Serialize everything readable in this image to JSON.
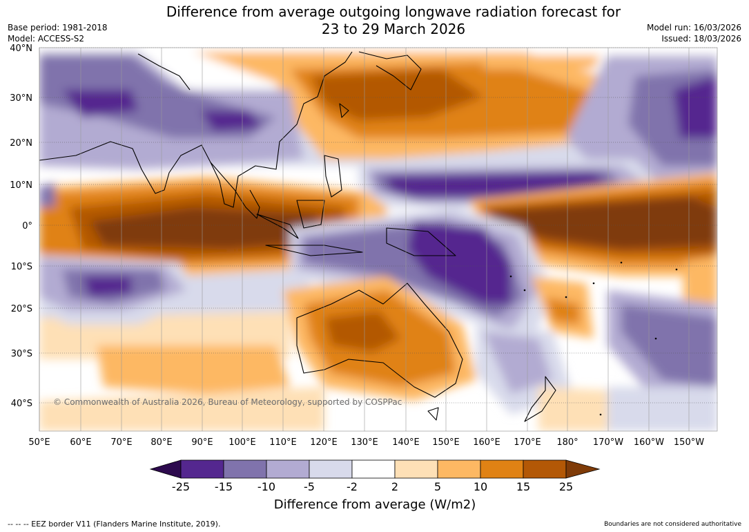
{
  "title_line1": "Difference from average outgoing longwave radiation forecast for",
  "title_line2": "23 to 29 March 2026",
  "base_period": "Base period: 1981-2018",
  "model": "Model: ACCESS-S2",
  "model_run": "Model run: 16/03/2026",
  "issued": "Issued: 18/03/2026",
  "copyright": "© Commonwealth of Australia 2026, Bureau of Meteorology, supported by COSPPac",
  "eez_note": "--  --  -- EEZ border V11 (Flanders Marine Institute, 2019).",
  "boundaries_note": "Boundaries are not considered authoritative",
  "lat_labels": [
    "40°N",
    "30°N",
    "20°N",
    "10°N",
    "0°",
    "10°S",
    "20°S",
    "30°S",
    "40°S"
  ],
  "lon_labels": [
    "50°E",
    "60°E",
    "70°E",
    "80°E",
    "90°E",
    "100°E",
    "110°E",
    "120°E",
    "130°E",
    "140°E",
    "150°E",
    "160°E",
    "170°E",
    "180°",
    "170°W",
    "160°W",
    "150°W"
  ],
  "colorbar": {
    "title": "Difference from average (W/m2)",
    "ticks": [
      "-25",
      "-15",
      "-10",
      "-5",
      "-2",
      "2",
      "5",
      "10",
      "15",
      "25"
    ],
    "colors": [
      "#2d0a4e",
      "#54278f",
      "#8073ac",
      "#b2abd2",
      "#d8daeb",
      "#ffffff",
      "#fee0b6",
      "#fdb863",
      "#e08214",
      "#b35806",
      "#7f3b08"
    ]
  }
}
